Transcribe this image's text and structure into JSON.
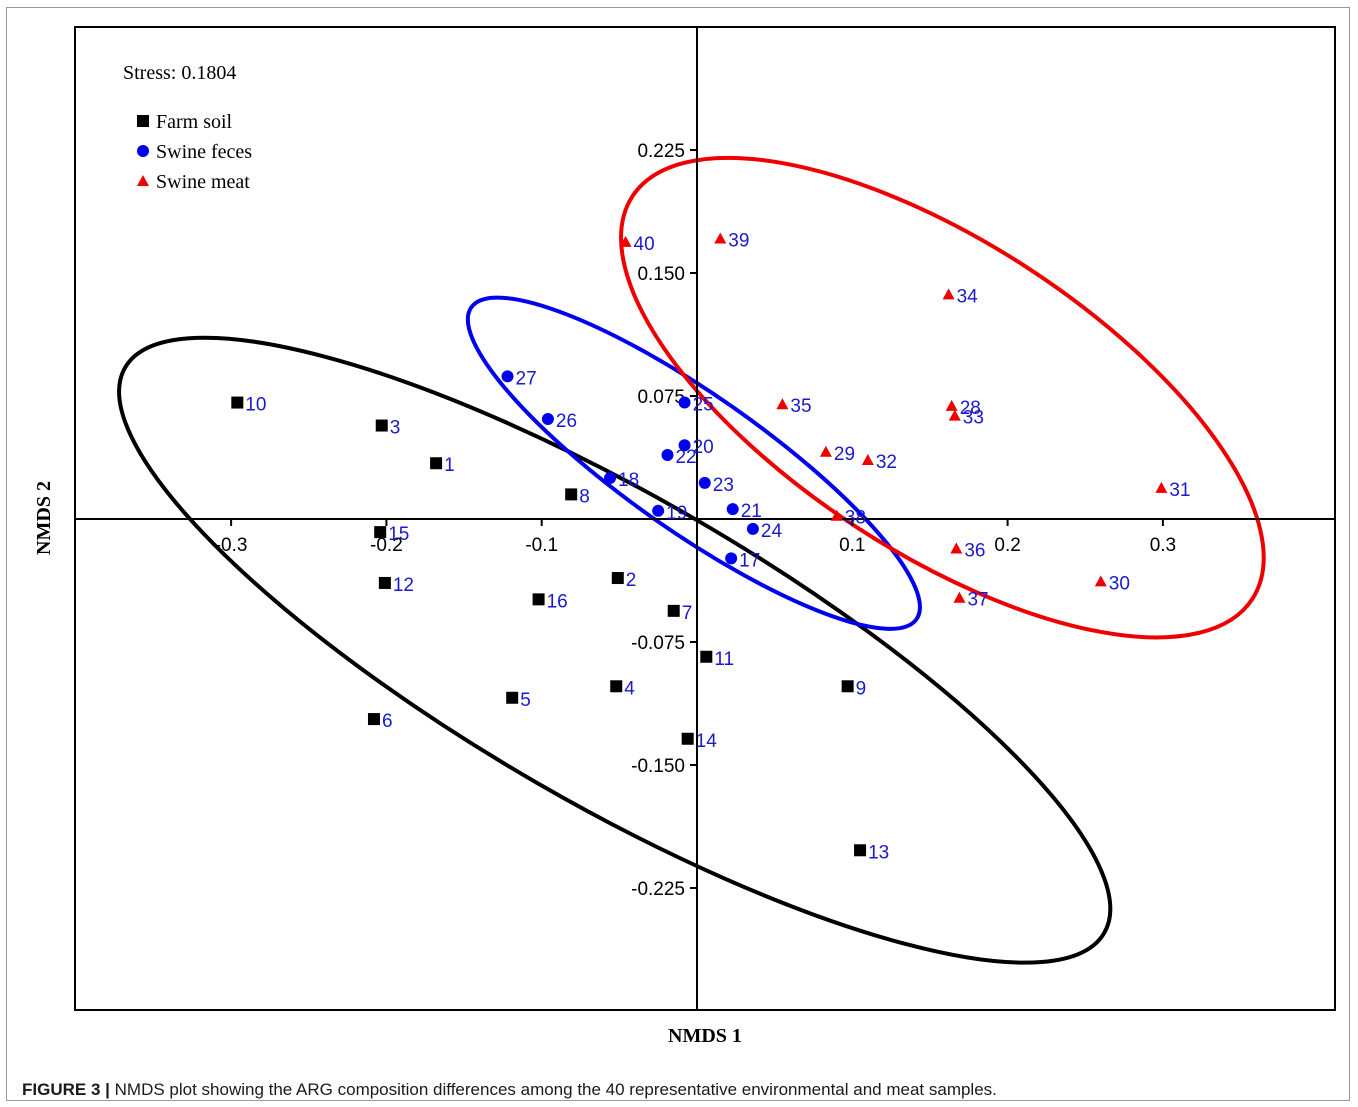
{
  "caption": {
    "label": "FIGURE 3 |",
    "text": "NMDS plot showing the ARG composition differences among the 40 representative environmental and meat samples."
  },
  "chart_data": {
    "type": "scatter",
    "xlabel": "NMDS 1",
    "ylabel": "NMDS 2",
    "stress": "Stress: 0.1804",
    "xlim": [
      -0.4,
      0.4
    ],
    "ylim": [
      -0.3,
      0.3
    ],
    "x_ticks": [
      {
        "value": -0.3,
        "label": "-0.3"
      },
      {
        "value": -0.2,
        "label": "-0.2"
      },
      {
        "value": -0.1,
        "label": "-0.1"
      },
      {
        "value": 0.1,
        "label": "0.1"
      },
      {
        "value": 0.2,
        "label": "0.2"
      },
      {
        "value": 0.3,
        "label": "0.3"
      }
    ],
    "y_ticks": [
      {
        "value": 0.225,
        "label": "0.225"
      },
      {
        "value": 0.15,
        "label": "0.150"
      },
      {
        "value": 0.075,
        "label": "0.075"
      },
      {
        "value": -0.075,
        "label": "-0.075"
      },
      {
        "value": -0.15,
        "label": "-0.150"
      },
      {
        "value": -0.225,
        "label": "-0.225"
      }
    ],
    "grid": false,
    "legend_position": "top-left",
    "point_label_color": "#1a1acc",
    "series": [
      {
        "name": "Farm soil",
        "marker": "square",
        "color": "#000000",
        "points": [
          {
            "id": "1",
            "x": -0.168,
            "y": 0.034
          },
          {
            "id": "2",
            "x": -0.051,
            "y": -0.036
          },
          {
            "id": "3",
            "x": -0.203,
            "y": 0.057
          },
          {
            "id": "4",
            "x": -0.052,
            "y": -0.102
          },
          {
            "id": "5",
            "x": -0.119,
            "y": -0.109
          },
          {
            "id": "6",
            "x": -0.208,
            "y": -0.122
          },
          {
            "id": "7",
            "x": -0.015,
            "y": -0.056
          },
          {
            "id": "8",
            "x": -0.081,
            "y": 0.015
          },
          {
            "id": "9",
            "x": 0.097,
            "y": -0.102
          },
          {
            "id": "10",
            "x": -0.296,
            "y": 0.071
          },
          {
            "id": "11",
            "x": 0.006,
            "y": -0.084
          },
          {
            "id": "12",
            "x": -0.201,
            "y": -0.039
          },
          {
            "id": "13",
            "x": 0.105,
            "y": -0.202
          },
          {
            "id": "14",
            "x": -0.006,
            "y": -0.134
          },
          {
            "id": "15",
            "x": -0.204,
            "y": -0.008
          },
          {
            "id": "16",
            "x": -0.102,
            "y": -0.049
          }
        ]
      },
      {
        "name": "Swine feces",
        "marker": "circle",
        "color": "#0000ee",
        "points": [
          {
            "id": "17",
            "x": 0.022,
            "y": -0.024
          },
          {
            "id": "18",
            "x": -0.056,
            "y": 0.025
          },
          {
            "id": "19",
            "x": -0.025,
            "y": 0.005
          },
          {
            "id": "20",
            "x": -0.008,
            "y": 0.045
          },
          {
            "id": "21",
            "x": 0.023,
            "y": 0.006
          },
          {
            "id": "22",
            "x": -0.019,
            "y": 0.039
          },
          {
            "id": "23",
            "x": 0.005,
            "y": 0.022
          },
          {
            "id": "24",
            "x": 0.036,
            "y": -0.006
          },
          {
            "id": "25",
            "x": -0.008,
            "y": 0.071
          },
          {
            "id": "26",
            "x": -0.096,
            "y": 0.061
          },
          {
            "id": "27",
            "x": -0.122,
            "y": 0.087
          }
        ]
      },
      {
        "name": "Swine meat",
        "marker": "triangle",
        "color": "#ee0000",
        "points": [
          {
            "id": "28",
            "x": 0.164,
            "y": 0.069
          },
          {
            "id": "29",
            "x": 0.083,
            "y": 0.041
          },
          {
            "id": "30",
            "x": 0.26,
            "y": -0.038
          },
          {
            "id": "31",
            "x": 0.299,
            "y": 0.019
          },
          {
            "id": "32",
            "x": 0.11,
            "y": 0.036
          },
          {
            "id": "33",
            "x": 0.166,
            "y": 0.063
          },
          {
            "id": "34",
            "x": 0.162,
            "y": 0.137
          },
          {
            "id": "35",
            "x": 0.055,
            "y": 0.07
          },
          {
            "id": "36",
            "x": 0.167,
            "y": -0.018
          },
          {
            "id": "37",
            "x": 0.169,
            "y": -0.048
          },
          {
            "id": "38",
            "x": 0.09,
            "y": 0.002
          },
          {
            "id": "39",
            "x": 0.015,
            "y": 0.171
          },
          {
            "id": "40",
            "x": -0.046,
            "y": 0.169
          }
        ]
      }
    ],
    "ellipses": [
      {
        "series": "Farm soil",
        "color": "#000000",
        "cx": -0.053,
        "cy": -0.08,
        "rx": 0.364,
        "ry": 0.099,
        "angle_deg": 30
      },
      {
        "series": "Swine feces",
        "color": "#0000ee",
        "cx": -0.002,
        "cy": 0.034,
        "rx": 0.175,
        "ry": 0.044,
        "angle_deg": 35
      },
      {
        "series": "Swine meat",
        "color": "#ee0000",
        "cx": 0.158,
        "cy": 0.074,
        "rx": 0.238,
        "ry": 0.1,
        "angle_deg": 33
      }
    ]
  }
}
